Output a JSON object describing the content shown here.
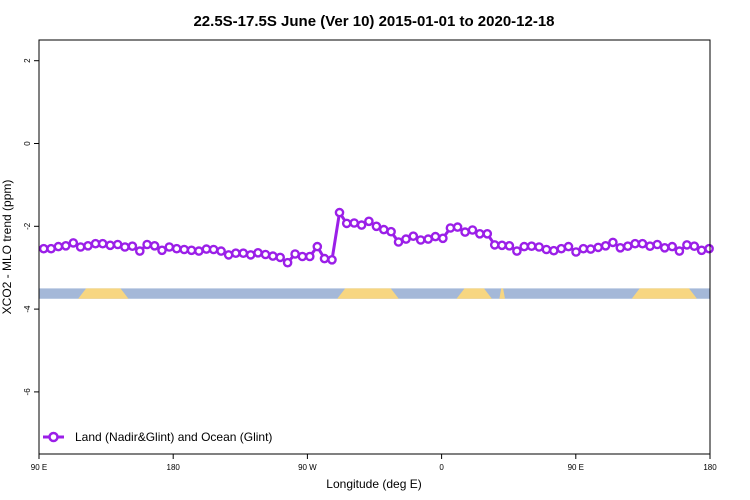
{
  "chart_data": {
    "type": "line",
    "title": "22.5S-17.5S June (Ver 10)   2015-01-01 to 2020-12-18",
    "xlabel": "Longitude (deg E)",
    "ylabel": "XCO2 - MLO trend (ppm)",
    "xlim": [
      90,
      450
    ],
    "ylim": [
      -7.5,
      2.5
    ],
    "x_ticks": [
      {
        "value": 90,
        "label": "90 E"
      },
      {
        "value": 162,
        "label": "180"
      },
      {
        "value": 234,
        "label": "90 W"
      },
      {
        "value": 306,
        "label": "0"
      },
      {
        "value": 378,
        "label": "90 E"
      },
      {
        "value": 450,
        "label": "180"
      }
    ],
    "y_ticks": [
      {
        "value": 2,
        "label": "2"
      },
      {
        "value": 0,
        "label": "0"
      },
      {
        "value": -2,
        "label": "-2"
      },
      {
        "value": -4,
        "label": "-4"
      },
      {
        "value": -6,
        "label": "-6"
      }
    ],
    "series": [
      {
        "name": "Land (Nadir&Glint) and Ocean (Glint)",
        "color": "#9b1fe8",
        "x": [
          92.5,
          96.5,
          100.4,
          104.4,
          108.4,
          112.3,
          116.3,
          120.3,
          124.2,
          128.2,
          132.2,
          136.1,
          140.1,
          144.1,
          148.0,
          152.0,
          156.0,
          159.9,
          163.9,
          167.9,
          171.8,
          175.8,
          179.8,
          183.7,
          187.7,
          191.7,
          195.6,
          199.6,
          203.6,
          207.5,
          211.5,
          215.5,
          219.4,
          223.4,
          227.4,
          231.3,
          235.3,
          239.3,
          243.2,
          247.2,
          251.2,
          255.1,
          259.1,
          263.1,
          267.0,
          271.0,
          275.0,
          278.9,
          282.9,
          286.9,
          290.8,
          294.8,
          298.8,
          302.7,
          306.7,
          310.7,
          314.6,
          318.6,
          322.6,
          326.5,
          330.5,
          334.5,
          338.4,
          342.4,
          346.4,
          350.3,
          354.3,
          358.3,
          362.2,
          366.2,
          370.2,
          374.1,
          378.1,
          382.1,
          386.0,
          390.0,
          394.0,
          397.9,
          401.9,
          405.9,
          409.8,
          413.8,
          417.8,
          421.7,
          425.7,
          429.7,
          433.6,
          437.6,
          441.6,
          445.5,
          449.5
        ],
        "y": [
          -2.54,
          -2.54,
          -2.49,
          -2.47,
          -2.4,
          -2.5,
          -2.47,
          -2.42,
          -2.42,
          -2.46,
          -2.44,
          -2.5,
          -2.48,
          -2.6,
          -2.44,
          -2.47,
          -2.58,
          -2.5,
          -2.54,
          -2.56,
          -2.58,
          -2.6,
          -2.55,
          -2.56,
          -2.6,
          -2.69,
          -2.65,
          -2.65,
          -2.69,
          -2.64,
          -2.68,
          -2.72,
          -2.75,
          -2.88,
          -2.67,
          -2.73,
          -2.73,
          -2.49,
          -2.78,
          -2.81,
          -1.67,
          -1.93,
          -1.92,
          -1.97,
          -1.88,
          -2.0,
          -2.08,
          -2.13,
          -2.38,
          -2.31,
          -2.24,
          -2.33,
          -2.31,
          -2.25,
          -2.29,
          -2.04,
          -2.02,
          -2.14,
          -2.09,
          -2.18,
          -2.18,
          -2.45,
          -2.46,
          -2.47,
          -2.6,
          -2.49,
          -2.48,
          -2.5,
          -2.56,
          -2.59,
          -2.54,
          -2.49,
          -2.62,
          -2.54,
          -2.55,
          -2.51,
          -2.47,
          -2.39,
          -2.52,
          -2.48,
          -2.42,
          -2.42,
          -2.48,
          -2.44,
          -2.52,
          -2.49,
          -2.6,
          -2.45,
          -2.48,
          -2.58,
          -2.54
        ]
      }
    ],
    "surface_band": {
      "ocean_color": "#a4b8d8",
      "land_color": "#f7d681",
      "land_segments": [
        [
          111,
          138
        ],
        [
          250,
          283
        ],
        [
          314,
          333
        ],
        [
          337,
          340
        ],
        [
          408,
          443
        ]
      ]
    },
    "legend": {
      "placement": "bottom-left"
    },
    "grid": false
  }
}
